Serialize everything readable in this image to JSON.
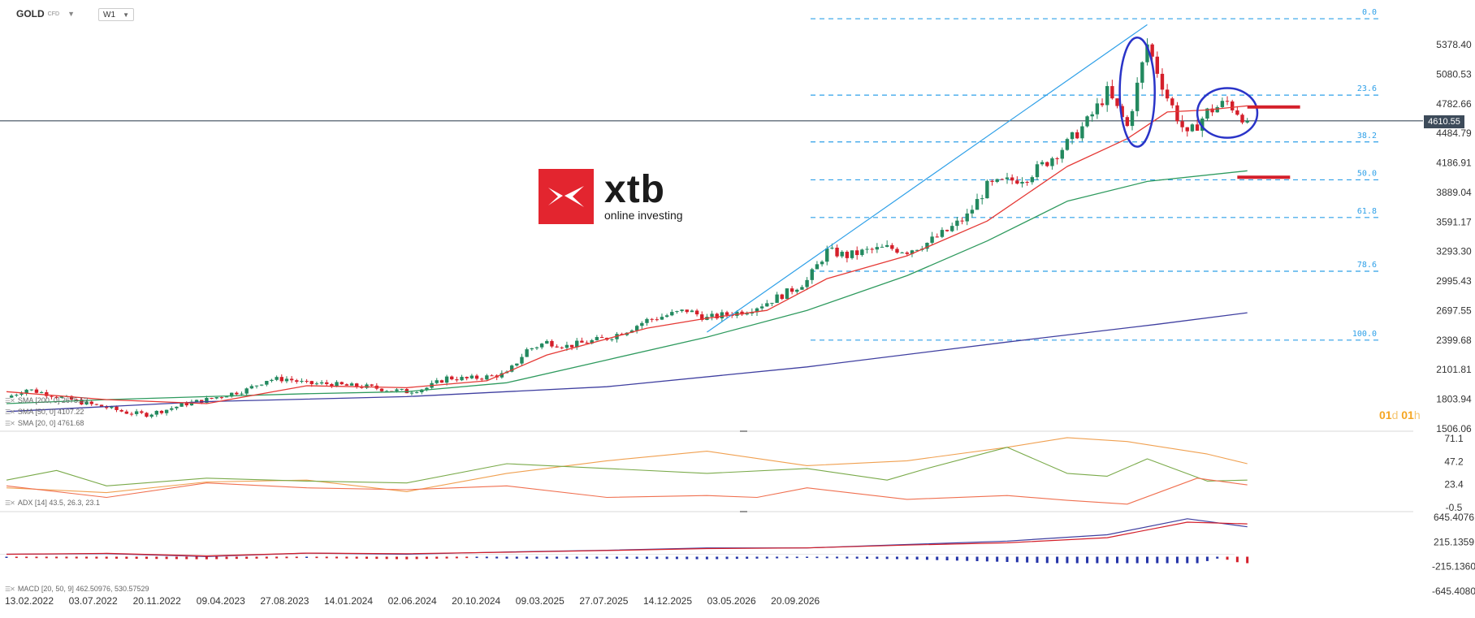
{
  "toolbar": {
    "symbol": "GOLD",
    "symbol_type": "CFD",
    "timeframe": "W1"
  },
  "logo": {
    "brand": "xtb",
    "tagline": "online investing"
  },
  "countdown": {
    "d": "01",
    "d_unit": "d",
    "h": "01",
    "h_unit": "h"
  },
  "current_price": "4610.55",
  "legends": {
    "sma200": "SMA [200, 0] 2675.53",
    "sma50": "SMA [50, 0] 4107.22",
    "sma20": "SMA [20, 0] 4761.68",
    "adx": "ADX [14] 43.5, 26.3, 23.1",
    "macd": "MACD [20, 50, 9] 462.50976, 530.57529"
  },
  "colors": {
    "bull": "#23895f",
    "bear": "#d41f2a",
    "sma20": "#e53935",
    "sma50": "#2e9a5e",
    "sma200": "#3f3fa0",
    "fib": "#2fa0e8",
    "ellipse": "#2a34c8",
    "price_line": "#3d4b5a",
    "adx": "#f0a050",
    "di_plus": "#7aaa4a",
    "di_minus": "#f07050"
  },
  "chart_data": [
    {
      "type": "candlestick",
      "title": "GOLD CFD W1",
      "ylabels": [
        "5378.40",
        "5080.53",
        "4782.66",
        "4484.79",
        "4186.91",
        "3889.04",
        "3591.17",
        "3293.30",
        "2995.43",
        "2697.55",
        "2399.68",
        "2101.81",
        "1803.94",
        "1506.06"
      ],
      "ylim": [
        1506.06,
        5378.4
      ],
      "xlabels": [
        "13.02.2022",
        "03.07.2022",
        "20.11.2022",
        "09.04.2023",
        "27.08.2023",
        "14.01.2024",
        "02.06.2024",
        "20.10.2024",
        "09.03.2025",
        "27.07.2025",
        "14.12.2025",
        "03.05.2026",
        "20.09.2026"
      ],
      "fibonacci": [
        {
          "label": "0.0",
          "price": 5640
        },
        {
          "label": "23.6",
          "price": 4870
        },
        {
          "label": "38.2",
          "price": 4398
        },
        {
          "label": "50.0",
          "price": 4016
        },
        {
          "label": "61.8",
          "price": 3636
        },
        {
          "label": "78.6",
          "price": 3094
        },
        {
          "label": "100.0",
          "price": 2400
        }
      ],
      "price_path": [
        [
          0,
          1820
        ],
        [
          4,
          1905
        ],
        [
          8,
          1860
        ],
        [
          12,
          1810
        ],
        [
          16,
          1760
        ],
        [
          20,
          1720
        ],
        [
          24,
          1670
        ],
        [
          28,
          1650
        ],
        [
          32,
          1700
        ],
        [
          36,
          1760
        ],
        [
          40,
          1800
        ],
        [
          44,
          1850
        ],
        [
          48,
          1900
        ],
        [
          52,
          2000
        ],
        [
          56,
          2010
        ],
        [
          60,
          1960
        ],
        [
          64,
          1960
        ],
        [
          68,
          1940
        ],
        [
          72,
          1930
        ],
        [
          76,
          1900
        ],
        [
          80,
          1880
        ],
        [
          84,
          1920
        ],
        [
          88,
          2020
        ],
        [
          92,
          2010
        ],
        [
          96,
          2030
        ],
        [
          100,
          2060
        ],
        [
          104,
          2300
        ],
        [
          108,
          2380
        ],
        [
          112,
          2340
        ],
        [
          116,
          2380
        ],
        [
          120,
          2420
        ],
        [
          124,
          2500
        ],
        [
          128,
          2600
        ],
        [
          132,
          2650
        ],
        [
          136,
          2700
        ],
        [
          140,
          2620
        ],
        [
          144,
          2660
        ],
        [
          148,
          2700
        ],
        [
          152,
          2780
        ],
        [
          156,
          2880
        ],
        [
          160,
          3000
        ],
        [
          164,
          3300
        ],
        [
          168,
          3250
        ],
        [
          172,
          3300
        ],
        [
          176,
          3330
        ],
        [
          180,
          3300
        ],
        [
          184,
          3380
        ],
        [
          188,
          3500
        ],
        [
          192,
          3650
        ],
        [
          196,
          3950
        ],
        [
          200,
          4000
        ],
        [
          204,
          4050
        ],
        [
          208,
          4200
        ],
        [
          212,
          4380
        ],
        [
          216,
          4600
        ],
        [
          220,
          4900
        ],
        [
          224,
          4550
        ],
        [
          228,
          5380
        ],
        [
          232,
          4850
        ],
        [
          236,
          4450
        ],
        [
          240,
          4700
        ],
        [
          244,
          4800
        ],
        [
          248,
          4610
        ]
      ],
      "sma20_path": [
        [
          0,
          1880
        ],
        [
          20,
          1800
        ],
        [
          40,
          1760
        ],
        [
          60,
          1940
        ],
        [
          80,
          1920
        ],
        [
          96,
          1990
        ],
        [
          108,
          2250
        ],
        [
          128,
          2520
        ],
        [
          140,
          2620
        ],
        [
          152,
          2700
        ],
        [
          164,
          3020
        ],
        [
          180,
          3250
        ],
        [
          196,
          3600
        ],
        [
          212,
          4150
        ],
        [
          224,
          4430
        ],
        [
          232,
          4700
        ],
        [
          240,
          4720
        ],
        [
          248,
          4762
        ]
      ],
      "sma50_path": [
        [
          0,
          1760
        ],
        [
          20,
          1800
        ],
        [
          40,
          1830
        ],
        [
          60,
          1860
        ],
        [
          80,
          1880
        ],
        [
          100,
          1970
        ],
        [
          120,
          2200
        ],
        [
          140,
          2430
        ],
        [
          160,
          2700
        ],
        [
          180,
          3050
        ],
        [
          196,
          3400
        ],
        [
          212,
          3800
        ],
        [
          228,
          4000
        ],
        [
          248,
          4107
        ]
      ],
      "sma200_path": [
        [
          0,
          1680
        ],
        [
          40,
          1780
        ],
        [
          80,
          1830
        ],
        [
          120,
          1930
        ],
        [
          160,
          2130
        ],
        [
          200,
          2380
        ],
        [
          230,
          2560
        ],
        [
          248,
          2676
        ]
      ],
      "annotations": [
        {
          "type": "trendline",
          "from": [
            140,
            2480
          ],
          "to": [
            228,
            5580
          ]
        },
        {
          "type": "ellipse",
          "center": [
            226,
            4900
          ],
          "rx_weeks": 7,
          "ry_price": 550
        },
        {
          "type": "ellipse",
          "center": [
            244,
            4690
          ],
          "rx_weeks": 12,
          "ry_price": 250
        },
        {
          "type": "level",
          "price": 4750,
          "from": 248,
          "to": 254
        },
        {
          "type": "level",
          "price": 4042,
          "from": 246,
          "to": 252
        }
      ]
    },
    {
      "type": "line",
      "title": "ADX [14]",
      "ylabels": [
        "71.1",
        "47.2",
        "23.4",
        "-0.5"
      ],
      "ylim": [
        -0.5,
        71.1
      ],
      "series": [
        {
          "name": "ADX",
          "path": [
            [
              0,
              20
            ],
            [
              20,
              15
            ],
            [
              40,
              26
            ],
            [
              60,
              28
            ],
            [
              80,
              16
            ],
            [
              100,
              35
            ],
            [
              120,
              48
            ],
            [
              140,
              58
            ],
            [
              160,
              43
            ],
            [
              180,
              48
            ],
            [
              200,
              62
            ],
            [
              212,
              72
            ],
            [
              224,
              68
            ],
            [
              240,
              55
            ],
            [
              248,
              45
            ]
          ]
        },
        {
          "name": "+DI",
          "path": [
            [
              0,
              28
            ],
            [
              10,
              38
            ],
            [
              20,
              22
            ],
            [
              40,
              30
            ],
            [
              60,
              27
            ],
            [
              80,
              25
            ],
            [
              100,
              45
            ],
            [
              120,
              40
            ],
            [
              140,
              35
            ],
            [
              160,
              40
            ],
            [
              176,
              28
            ],
            [
              184,
              40
            ],
            [
              200,
              62
            ],
            [
              212,
              35
            ],
            [
              220,
              32
            ],
            [
              228,
              50
            ],
            [
              240,
              27
            ],
            [
              248,
              28
            ]
          ]
        },
        {
          "name": "-DI",
          "path": [
            [
              0,
              22
            ],
            [
              20,
              10
            ],
            [
              40,
              25
            ],
            [
              60,
              20
            ],
            [
              80,
              18
            ],
            [
              100,
              22
            ],
            [
              120,
              10
            ],
            [
              140,
              12
            ],
            [
              150,
              10
            ],
            [
              160,
              20
            ],
            [
              180,
              8
            ],
            [
              200,
              12
            ],
            [
              212,
              7
            ],
            [
              224,
              3
            ],
            [
              238,
              30
            ],
            [
              248,
              23
            ]
          ]
        }
      ]
    },
    {
      "type": "line",
      "title": "MACD [20, 50, 9]",
      "ylabels": [
        "645.4076",
        "215.1359",
        "-215.1360",
        "-645.4080"
      ],
      "ylim": [
        -645.408,
        645.4076
      ],
      "series": [
        {
          "name": "MACD",
          "path": [
            [
              0,
              0
            ],
            [
              20,
              10
            ],
            [
              40,
              -40
            ],
            [
              60,
              20
            ],
            [
              80,
              0
            ],
            [
              100,
              40
            ],
            [
              120,
              70
            ],
            [
              140,
              110
            ],
            [
              160,
              110
            ],
            [
              180,
              170
            ],
            [
              200,
              230
            ],
            [
              220,
              340
            ],
            [
              236,
              620
            ],
            [
              248,
              480
            ]
          ]
        },
        {
          "name": "Signal",
          "path": [
            [
              0,
              0
            ],
            [
              20,
              15
            ],
            [
              40,
              -30
            ],
            [
              60,
              20
            ],
            [
              80,
              10
            ],
            [
              100,
              35
            ],
            [
              120,
              65
            ],
            [
              140,
              100
            ],
            [
              160,
              110
            ],
            [
              180,
              160
            ],
            [
              200,
              200
            ],
            [
              220,
              290
            ],
            [
              236,
              560
            ],
            [
              248,
              530
            ]
          ]
        }
      ]
    }
  ]
}
